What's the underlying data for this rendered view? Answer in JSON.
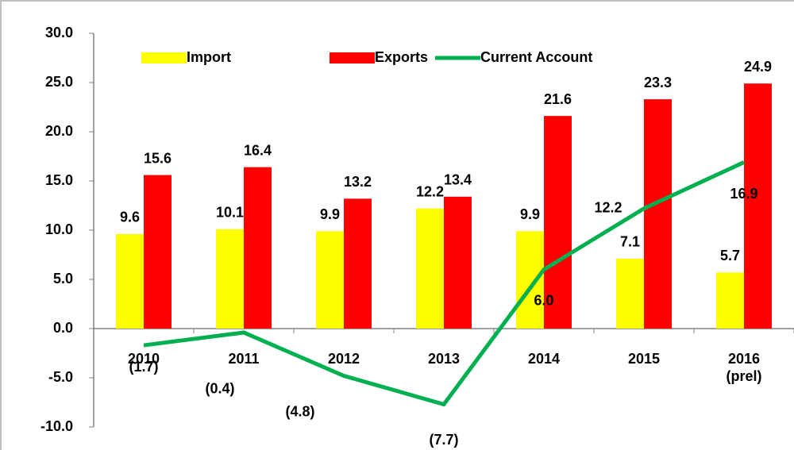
{
  "chart_data": {
    "type": "bar_line",
    "categories": [
      "2010",
      "2011",
      "2012",
      "2013",
      "2014",
      "2015",
      "2016\n(prel)"
    ],
    "series": [
      {
        "name": "Import",
        "color": "#ffff00",
        "type": "bar",
        "values": [
          9.6,
          10.1,
          9.9,
          12.2,
          9.9,
          7.1,
          5.7
        ]
      },
      {
        "name": "Exports",
        "color": "#ff0000",
        "type": "bar",
        "values": [
          15.6,
          16.4,
          13.2,
          13.4,
          21.6,
          23.3,
          24.9
        ]
      },
      {
        "name": "Current Account",
        "color": "#00b050",
        "type": "line",
        "values": [
          -1.7,
          -0.4,
          -4.8,
          -7.7,
          6.0,
          12.2,
          16.9
        ],
        "value_labels": [
          "(1.7)",
          "(0.4)",
          "(4.8)",
          "(7.7)",
          "6.0",
          "12.2",
          "16.9"
        ]
      }
    ],
    "ylim": [
      -10,
      30
    ],
    "yticks": [
      {
        "value": -10,
        "label": "-10.0"
      },
      {
        "value": -5,
        "label": "-5.0"
      },
      {
        "value": 0,
        "label": "0.0"
      },
      {
        "value": 5,
        "label": "5.0"
      },
      {
        "value": 10,
        "label": "10.0"
      },
      {
        "value": 15,
        "label": "15.0"
      },
      {
        "value": 20,
        "label": "20.0"
      },
      {
        "value": 25,
        "label": "25.0"
      },
      {
        "value": 30,
        "label": "30.0"
      }
    ],
    "legend": "top",
    "grid": false
  }
}
